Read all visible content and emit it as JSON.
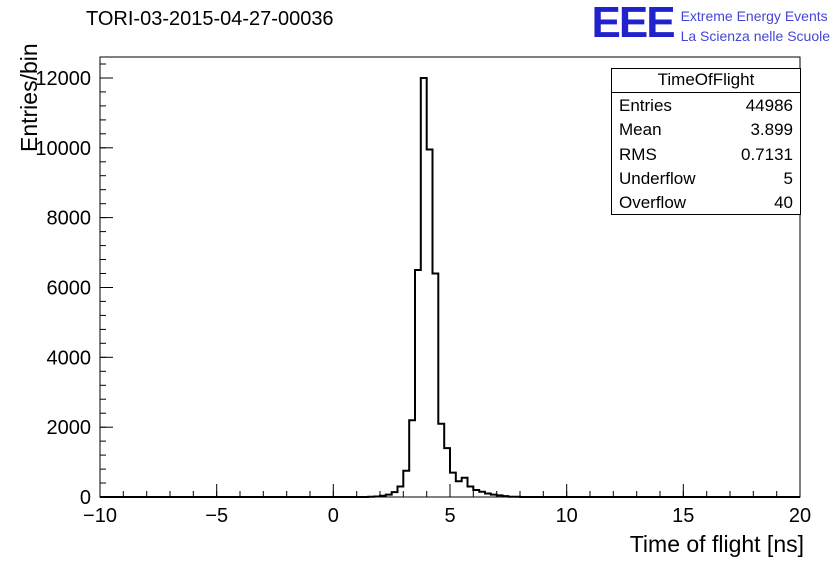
{
  "logo": {
    "text": "EEE",
    "line1": "Extreme Energy Events",
    "line2": "La Scienza nelle Scuole",
    "eee_color": "#2222cc",
    "subtitle_color": "#4646d6"
  },
  "stats": {
    "title": "TimeOfFlight",
    "rows": [
      {
        "label": "Entries",
        "value": "44986"
      },
      {
        "label": "Mean",
        "value": "3.899"
      },
      {
        "label": "RMS",
        "value": "0.7131"
      },
      {
        "label": "Underflow",
        "value": "5"
      },
      {
        "label": "Overflow",
        "value": "40"
      }
    ]
  },
  "chart_data": {
    "type": "histogram-step",
    "title": "TORI-03-2015-04-27-00036",
    "xlabel": "Time of flight [ns]",
    "ylabel": "Entries/bin",
    "xlim": [
      -10,
      20
    ],
    "ylim": [
      0,
      12600
    ],
    "x_major_ticks": [
      -10,
      -5,
      0,
      5,
      10,
      15,
      20
    ],
    "x_tick_labels": [
      "−10",
      "−5",
      "0",
      "5",
      "10",
      "15",
      "20"
    ],
    "x_minor_step": 1,
    "y_major_ticks": [
      0,
      2000,
      4000,
      6000,
      8000,
      10000,
      12000
    ],
    "y_tick_labels": [
      "0",
      "2000",
      "4000",
      "6000",
      "8000",
      "10000",
      "12000"
    ],
    "y_minor_step": 400,
    "grid": false,
    "line_color": "#000000",
    "bin_start": 1.5,
    "bin_width": 0.25,
    "counts": [
      5,
      15,
      35,
      70,
      140,
      300,
      750,
      2200,
      6500,
      12000,
      9950,
      6400,
      2100,
      1400,
      700,
      450,
      550,
      300,
      200,
      150,
      100,
      70,
      45,
      25,
      10,
      5
    ]
  }
}
